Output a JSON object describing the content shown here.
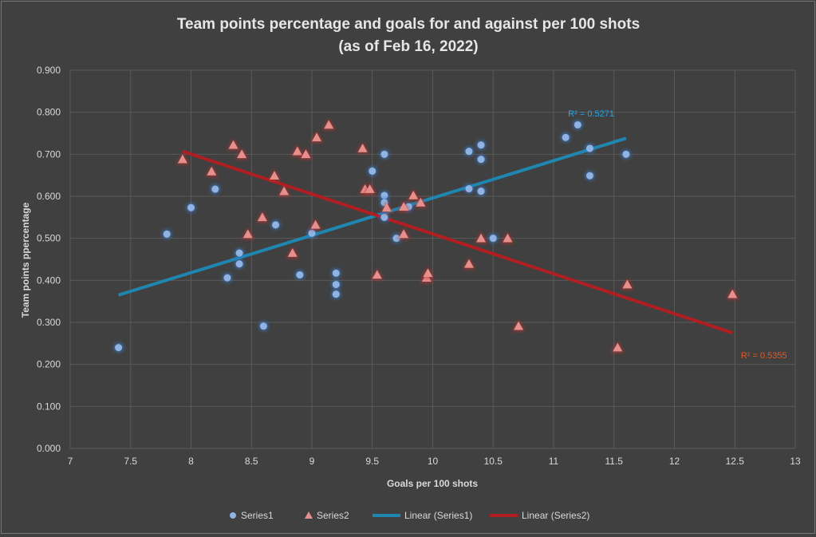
{
  "chart_data": {
    "type": "scatter",
    "title_line1": "Team points percentage and goals for and against per 100 shots",
    "title_line2": "(as of Feb 16, 2022)",
    "xlabel": "Goals per 100 shots",
    "ylabel": "Team points ppercentage",
    "xlim": [
      7,
      13
    ],
    "ylim": [
      0,
      0.9
    ],
    "xticks": [
      "7",
      "7.5",
      "8",
      "8.5",
      "9",
      "9.5",
      "10",
      "10.5",
      "11",
      "11.5",
      "12",
      "12.5",
      "13"
    ],
    "yticks": [
      "0.000",
      "0.100",
      "0.200",
      "0.300",
      "0.400",
      "0.500",
      "0.600",
      "0.700",
      "0.800",
      "0.900"
    ],
    "grid": true,
    "legend_position": "bottom",
    "series": [
      {
        "name": "Series1",
        "marker": "circle",
        "color": "#8fb4e3",
        "points": [
          [
            7.4,
            0.24
          ],
          [
            7.8,
            0.51
          ],
          [
            8.0,
            0.573
          ],
          [
            8.2,
            0.617
          ],
          [
            8.3,
            0.406
          ],
          [
            8.4,
            0.465
          ],
          [
            8.4,
            0.439
          ],
          [
            8.6,
            0.291
          ],
          [
            8.7,
            0.532
          ],
          [
            8.9,
            0.413
          ],
          [
            9.0,
            0.512
          ],
          [
            9.2,
            0.417
          ],
          [
            9.2,
            0.39
          ],
          [
            9.2,
            0.367
          ],
          [
            9.5,
            0.66
          ],
          [
            9.6,
            0.7
          ],
          [
            9.6,
            0.602
          ],
          [
            9.6,
            0.585
          ],
          [
            9.6,
            0.55
          ],
          [
            9.7,
            0.5
          ],
          [
            9.8,
            0.575
          ],
          [
            10.3,
            0.707
          ],
          [
            10.3,
            0.618
          ],
          [
            10.4,
            0.722
          ],
          [
            10.4,
            0.688
          ],
          [
            10.4,
            0.612
          ],
          [
            10.5,
            0.5
          ],
          [
            11.1,
            0.74
          ],
          [
            11.2,
            0.77
          ],
          [
            11.3,
            0.714
          ],
          [
            11.3,
            0.649
          ],
          [
            11.6,
            0.7
          ]
        ]
      },
      {
        "name": "Series2",
        "marker": "triangle",
        "color": "#e6908e",
        "points": [
          [
            7.93,
            0.688
          ],
          [
            8.17,
            0.659
          ],
          [
            8.35,
            0.722
          ],
          [
            8.42,
            0.7
          ],
          [
            8.47,
            0.51
          ],
          [
            8.59,
            0.55
          ],
          [
            8.69,
            0.649
          ],
          [
            8.77,
            0.612
          ],
          [
            8.84,
            0.465
          ],
          [
            8.88,
            0.707
          ],
          [
            8.95,
            0.7
          ],
          [
            9.03,
            0.532
          ],
          [
            9.04,
            0.74
          ],
          [
            9.14,
            0.77
          ],
          [
            9.42,
            0.714
          ],
          [
            9.44,
            0.617
          ],
          [
            9.48,
            0.617
          ],
          [
            9.54,
            0.413
          ],
          [
            9.62,
            0.573
          ],
          [
            9.76,
            0.575
          ],
          [
            9.76,
            0.51
          ],
          [
            9.84,
            0.602
          ],
          [
            9.9,
            0.585
          ],
          [
            9.95,
            0.406
          ],
          [
            9.96,
            0.417
          ],
          [
            10.3,
            0.439
          ],
          [
            10.4,
            0.5
          ],
          [
            10.62,
            0.5
          ],
          [
            10.71,
            0.291
          ],
          [
            11.53,
            0.24
          ],
          [
            11.61,
            0.39
          ],
          [
            12.48,
            0.367
          ]
        ]
      }
    ],
    "trendlines": [
      {
        "name": "Linear (Series1)",
        "color": "#1f86b0",
        "from": [
          7.4,
          0.365
        ],
        "to": [
          11.6,
          0.738
        ],
        "r2_label": "R² = 0.5271",
        "r2_color": "#1fa8e8",
        "label_at": [
          11.12,
          0.79
        ]
      },
      {
        "name": "Linear (Series2)",
        "color": "#b01e22",
        "from": [
          7.93,
          0.707
        ],
        "to": [
          12.48,
          0.275
        ],
        "r2_label": "R² = 0.5355",
        "r2_color": "#e8581f",
        "label_at": [
          12.55,
          0.215
        ]
      }
    ]
  }
}
